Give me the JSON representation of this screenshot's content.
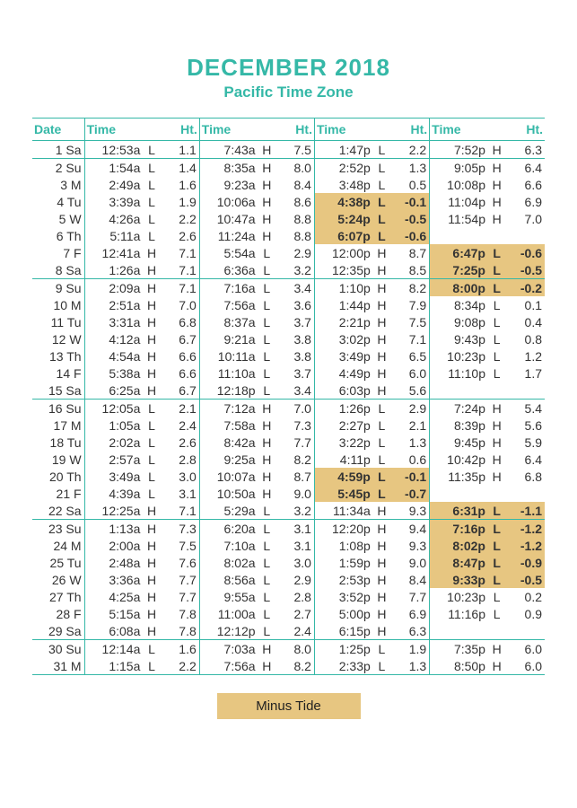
{
  "title": "DECEMBER 2018",
  "subtitle": "Pacific Time Zone",
  "legend": "Minus Tide",
  "headers": {
    "date": "Date",
    "time": "Time",
    "ht": "Ht."
  },
  "colors": {
    "teal": "#35b8a7",
    "highlight": "#e7c681",
    "text": "#333333",
    "background": "#ffffff"
  },
  "week_breaks_after": [
    "1",
    "8",
    "15",
    "22",
    "29"
  ],
  "rows": [
    {
      "d": "1",
      "dw": "Sa",
      "t": [
        [
          "12:53a",
          "L",
          "1.1"
        ],
        [
          "7:43a",
          "H",
          "7.5"
        ],
        [
          "1:47p",
          "L",
          "2.2"
        ],
        [
          "7:52p",
          "H",
          "6.3"
        ]
      ]
    },
    {
      "d": "2",
      "dw": "Su",
      "t": [
        [
          "1:54a",
          "L",
          "1.4"
        ],
        [
          "8:35a",
          "H",
          "8.0"
        ],
        [
          "2:52p",
          "L",
          "1.3"
        ],
        [
          "9:05p",
          "H",
          "6.4"
        ]
      ]
    },
    {
      "d": "3",
      "dw": "M",
      "t": [
        [
          "2:49a",
          "L",
          "1.6"
        ],
        [
          "9:23a",
          "H",
          "8.4"
        ],
        [
          "3:48p",
          "L",
          "0.5"
        ],
        [
          "10:08p",
          "H",
          "6.6"
        ]
      ]
    },
    {
      "d": "4",
      "dw": "Tu",
      "t": [
        [
          "3:39a",
          "L",
          "1.9"
        ],
        [
          "10:06a",
          "H",
          "8.6"
        ],
        [
          "4:38p",
          "L",
          "-0.1",
          true
        ],
        [
          "11:04p",
          "H",
          "6.9"
        ]
      ]
    },
    {
      "d": "5",
      "dw": "W",
      "t": [
        [
          "4:26a",
          "L",
          "2.2"
        ],
        [
          "10:47a",
          "H",
          "8.8"
        ],
        [
          "5:24p",
          "L",
          "-0.5",
          true
        ],
        [
          "11:54p",
          "H",
          "7.0"
        ]
      ]
    },
    {
      "d": "6",
      "dw": "Th",
      "t": [
        [
          "5:11a",
          "L",
          "2.6"
        ],
        [
          "11:24a",
          "H",
          "8.8"
        ],
        [
          "6:07p",
          "L",
          "-0.6",
          true
        ],
        [
          "",
          "",
          ""
        ]
      ]
    },
    {
      "d": "7",
      "dw": "F",
      "t": [
        [
          "12:41a",
          "H",
          "7.1"
        ],
        [
          "5:54a",
          "L",
          "2.9"
        ],
        [
          "12:00p",
          "H",
          "8.7"
        ],
        [
          "6:47p",
          "L",
          "-0.6",
          true
        ]
      ]
    },
    {
      "d": "8",
      "dw": "Sa",
      "t": [
        [
          "1:26a",
          "H",
          "7.1"
        ],
        [
          "6:36a",
          "L",
          "3.2"
        ],
        [
          "12:35p",
          "H",
          "8.5"
        ],
        [
          "7:25p",
          "L",
          "-0.5",
          true
        ]
      ]
    },
    {
      "d": "9",
      "dw": "Su",
      "t": [
        [
          "2:09a",
          "H",
          "7.1"
        ],
        [
          "7:16a",
          "L",
          "3.4"
        ],
        [
          "1:10p",
          "H",
          "8.2"
        ],
        [
          "8:00p",
          "L",
          "-0.2",
          true
        ]
      ]
    },
    {
      "d": "10",
      "dw": "M",
      "t": [
        [
          "2:51a",
          "H",
          "7.0"
        ],
        [
          "7:56a",
          "L",
          "3.6"
        ],
        [
          "1:44p",
          "H",
          "7.9"
        ],
        [
          "8:34p",
          "L",
          "0.1"
        ]
      ]
    },
    {
      "d": "11",
      "dw": "Tu",
      "t": [
        [
          "3:31a",
          "H",
          "6.8"
        ],
        [
          "8:37a",
          "L",
          "3.7"
        ],
        [
          "2:21p",
          "H",
          "7.5"
        ],
        [
          "9:08p",
          "L",
          "0.4"
        ]
      ]
    },
    {
      "d": "12",
      "dw": "W",
      "t": [
        [
          "4:12a",
          "H",
          "6.7"
        ],
        [
          "9:21a",
          "L",
          "3.8"
        ],
        [
          "3:02p",
          "H",
          "7.1"
        ],
        [
          "9:43p",
          "L",
          "0.8"
        ]
      ]
    },
    {
      "d": "13",
      "dw": "Th",
      "t": [
        [
          "4:54a",
          "H",
          "6.6"
        ],
        [
          "10:11a",
          "L",
          "3.8"
        ],
        [
          "3:49p",
          "H",
          "6.5"
        ],
        [
          "10:23p",
          "L",
          "1.2"
        ]
      ]
    },
    {
      "d": "14",
      "dw": "F",
      "t": [
        [
          "5:38a",
          "H",
          "6.6"
        ],
        [
          "11:10a",
          "L",
          "3.7"
        ],
        [
          "4:49p",
          "H",
          "6.0"
        ],
        [
          "11:10p",
          "L",
          "1.7"
        ]
      ]
    },
    {
      "d": "15",
      "dw": "Sa",
      "t": [
        [
          "6:25a",
          "H",
          "6.7"
        ],
        [
          "12:18p",
          "L",
          "3.4"
        ],
        [
          "6:03p",
          "H",
          "5.6"
        ],
        [
          "",
          "",
          ""
        ]
      ]
    },
    {
      "d": "16",
      "dw": "Su",
      "t": [
        [
          "12:05a",
          "L",
          "2.1"
        ],
        [
          "7:12a",
          "H",
          "7.0"
        ],
        [
          "1:26p",
          "L",
          "2.9"
        ],
        [
          "7:24p",
          "H",
          "5.4"
        ]
      ]
    },
    {
      "d": "17",
      "dw": "M",
      "t": [
        [
          "1:05a",
          "L",
          "2.4"
        ],
        [
          "7:58a",
          "H",
          "7.3"
        ],
        [
          "2:27p",
          "L",
          "2.1"
        ],
        [
          "8:39p",
          "H",
          "5.6"
        ]
      ]
    },
    {
      "d": "18",
      "dw": "Tu",
      "t": [
        [
          "2:02a",
          "L",
          "2.6"
        ],
        [
          "8:42a",
          "H",
          "7.7"
        ],
        [
          "3:22p",
          "L",
          "1.3"
        ],
        [
          "9:45p",
          "H",
          "5.9"
        ]
      ]
    },
    {
      "d": "19",
      "dw": "W",
      "t": [
        [
          "2:57a",
          "L",
          "2.8"
        ],
        [
          "9:25a",
          "H",
          "8.2"
        ],
        [
          "4:11p",
          "L",
          "0.6"
        ],
        [
          "10:42p",
          "H",
          "6.4"
        ]
      ]
    },
    {
      "d": "20",
      "dw": "Th",
      "t": [
        [
          "3:49a",
          "L",
          "3.0"
        ],
        [
          "10:07a",
          "H",
          "8.7"
        ],
        [
          "4:59p",
          "L",
          "-0.1",
          true
        ],
        [
          "11:35p",
          "H",
          "6.8"
        ]
      ]
    },
    {
      "d": "21",
      "dw": "F",
      "t": [
        [
          "4:39a",
          "L",
          "3.1"
        ],
        [
          "10:50a",
          "H",
          "9.0"
        ],
        [
          "5:45p",
          "L",
          "-0.7",
          true
        ],
        [
          "",
          "",
          ""
        ]
      ]
    },
    {
      "d": "22",
      "dw": "Sa",
      "t": [
        [
          "12:25a",
          "H",
          "7.1"
        ],
        [
          "5:29a",
          "L",
          "3.2"
        ],
        [
          "11:34a",
          "H",
          "9.3"
        ],
        [
          "6:31p",
          "L",
          "-1.1",
          true
        ]
      ]
    },
    {
      "d": "23",
      "dw": "Su",
      "t": [
        [
          "1:13a",
          "H",
          "7.3"
        ],
        [
          "6:20a",
          "L",
          "3.1"
        ],
        [
          "12:20p",
          "H",
          "9.4"
        ],
        [
          "7:16p",
          "L",
          "-1.2",
          true
        ]
      ]
    },
    {
      "d": "24",
      "dw": "M",
      "t": [
        [
          "2:00a",
          "H",
          "7.5"
        ],
        [
          "7:10a",
          "L",
          "3.1"
        ],
        [
          "1:08p",
          "H",
          "9.3"
        ],
        [
          "8:02p",
          "L",
          "-1.2",
          true
        ]
      ]
    },
    {
      "d": "25",
      "dw": "Tu",
      "t": [
        [
          "2:48a",
          "H",
          "7.6"
        ],
        [
          "8:02a",
          "L",
          "3.0"
        ],
        [
          "1:59p",
          "H",
          "9.0"
        ],
        [
          "8:47p",
          "L",
          "-0.9",
          true
        ]
      ]
    },
    {
      "d": "26",
      "dw": "W",
      "t": [
        [
          "3:36a",
          "H",
          "7.7"
        ],
        [
          "8:56a",
          "L",
          "2.9"
        ],
        [
          "2:53p",
          "H",
          "8.4"
        ],
        [
          "9:33p",
          "L",
          "-0.5",
          true
        ]
      ]
    },
    {
      "d": "27",
      "dw": "Th",
      "t": [
        [
          "4:25a",
          "H",
          "7.7"
        ],
        [
          "9:55a",
          "L",
          "2.8"
        ],
        [
          "3:52p",
          "H",
          "7.7"
        ],
        [
          "10:23p",
          "L",
          "0.2"
        ]
      ]
    },
    {
      "d": "28",
      "dw": "F",
      "t": [
        [
          "5:15a",
          "H",
          "7.8"
        ],
        [
          "11:00a",
          "L",
          "2.7"
        ],
        [
          "5:00p",
          "H",
          "6.9"
        ],
        [
          "11:16p",
          "L",
          "0.9"
        ]
      ]
    },
    {
      "d": "29",
      "dw": "Sa",
      "t": [
        [
          "6:08a",
          "H",
          "7.8"
        ],
        [
          "12:12p",
          "L",
          "2.4"
        ],
        [
          "6:15p",
          "H",
          "6.3"
        ],
        [
          "",
          "",
          ""
        ]
      ]
    },
    {
      "d": "30",
      "dw": "Su",
      "t": [
        [
          "12:14a",
          "L",
          "1.6"
        ],
        [
          "7:03a",
          "H",
          "8.0"
        ],
        [
          "1:25p",
          "L",
          "1.9"
        ],
        [
          "7:35p",
          "H",
          "6.0"
        ]
      ]
    },
    {
      "d": "31",
      "dw": "M",
      "t": [
        [
          "1:15a",
          "L",
          "2.2"
        ],
        [
          "7:56a",
          "H",
          "8.2"
        ],
        [
          "2:33p",
          "L",
          "1.3"
        ],
        [
          "8:50p",
          "H",
          "6.0"
        ]
      ]
    }
  ]
}
